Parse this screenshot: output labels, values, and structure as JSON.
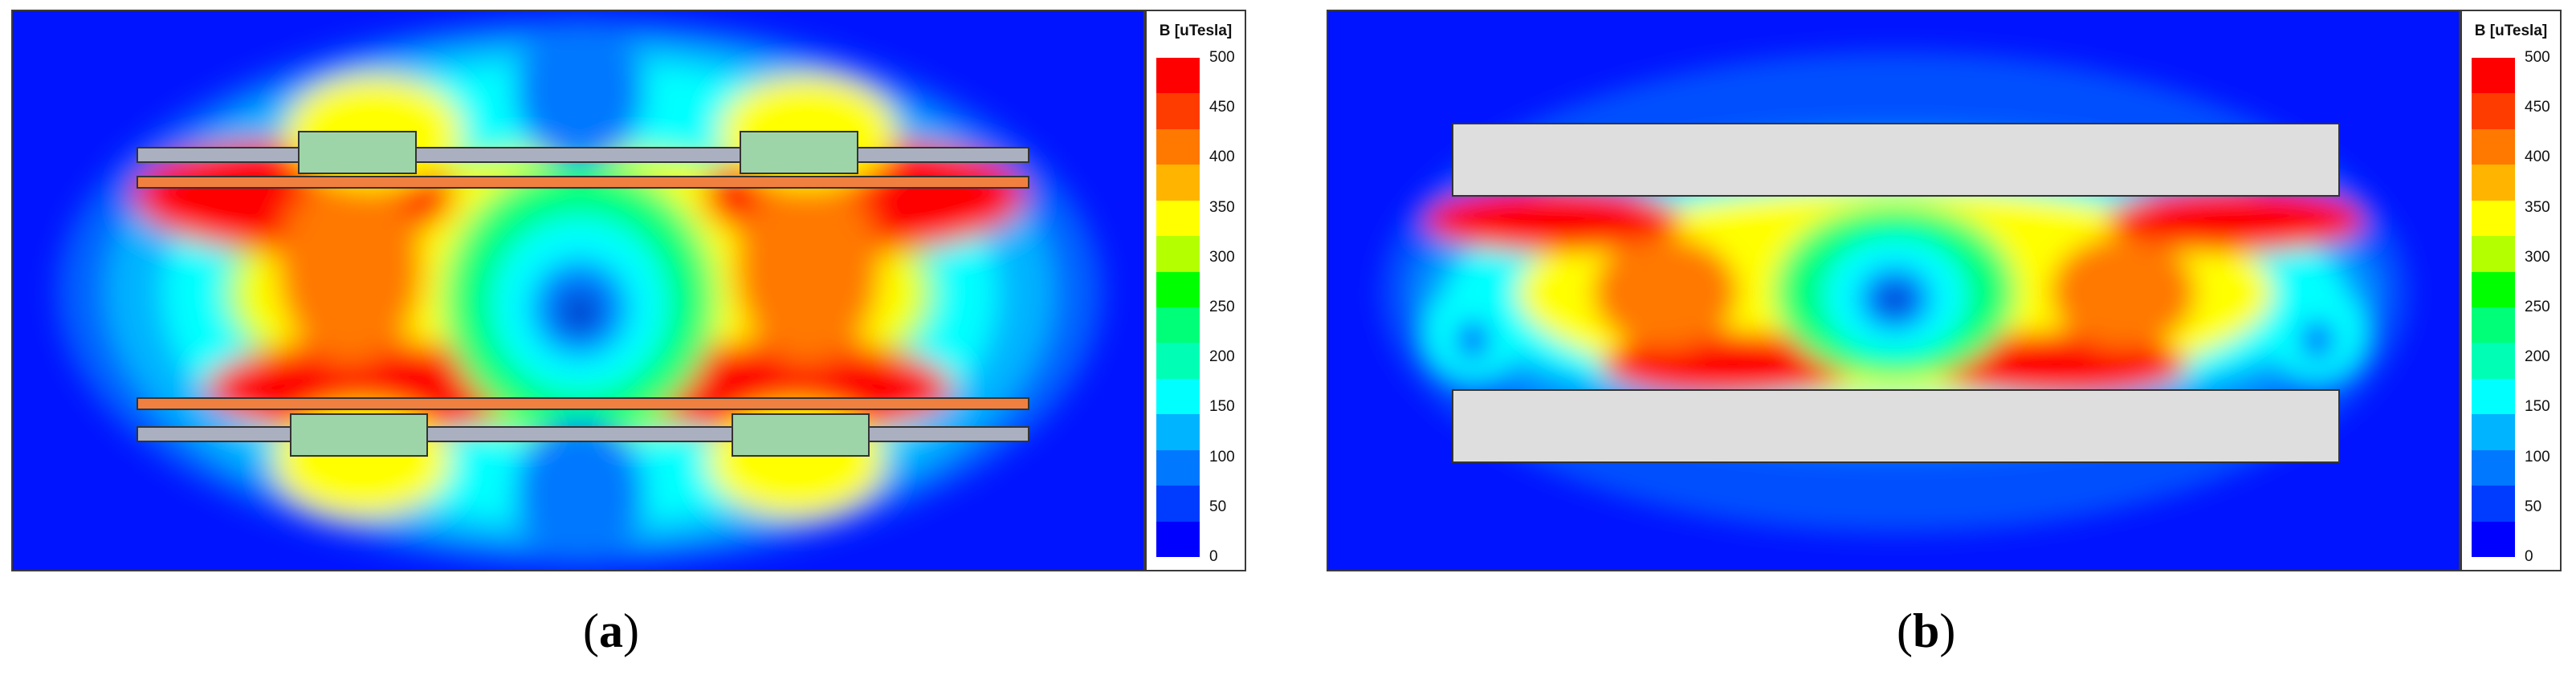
{
  "captions": {
    "a_open": "(",
    "a_letter": "a",
    "a_close": ")",
    "b_open": "(",
    "b_letter": "b",
    "b_close": ")"
  },
  "legend": {
    "title": "B [uTesla]",
    "ticks": [
      "500",
      "450",
      "400",
      "350",
      "300",
      "250",
      "200",
      "150",
      "100",
      "50",
      "0"
    ],
    "colors": [
      "#ff0000",
      "#ff3c00",
      "#ff7800",
      "#ffb400",
      "#ffff00",
      "#b4ff00",
      "#00ff00",
      "#00ff78",
      "#00ffb4",
      "#00ffff",
      "#00b4ff",
      "#0078ff",
      "#003cff",
      "#0000ff"
    ]
  },
  "colors": {
    "background": "#0a14ff",
    "coil_green": "#9ed5a8",
    "plate_gray": "#aab0c0",
    "plate_orange": "#f08040",
    "block_gray": "#dedede"
  }
}
